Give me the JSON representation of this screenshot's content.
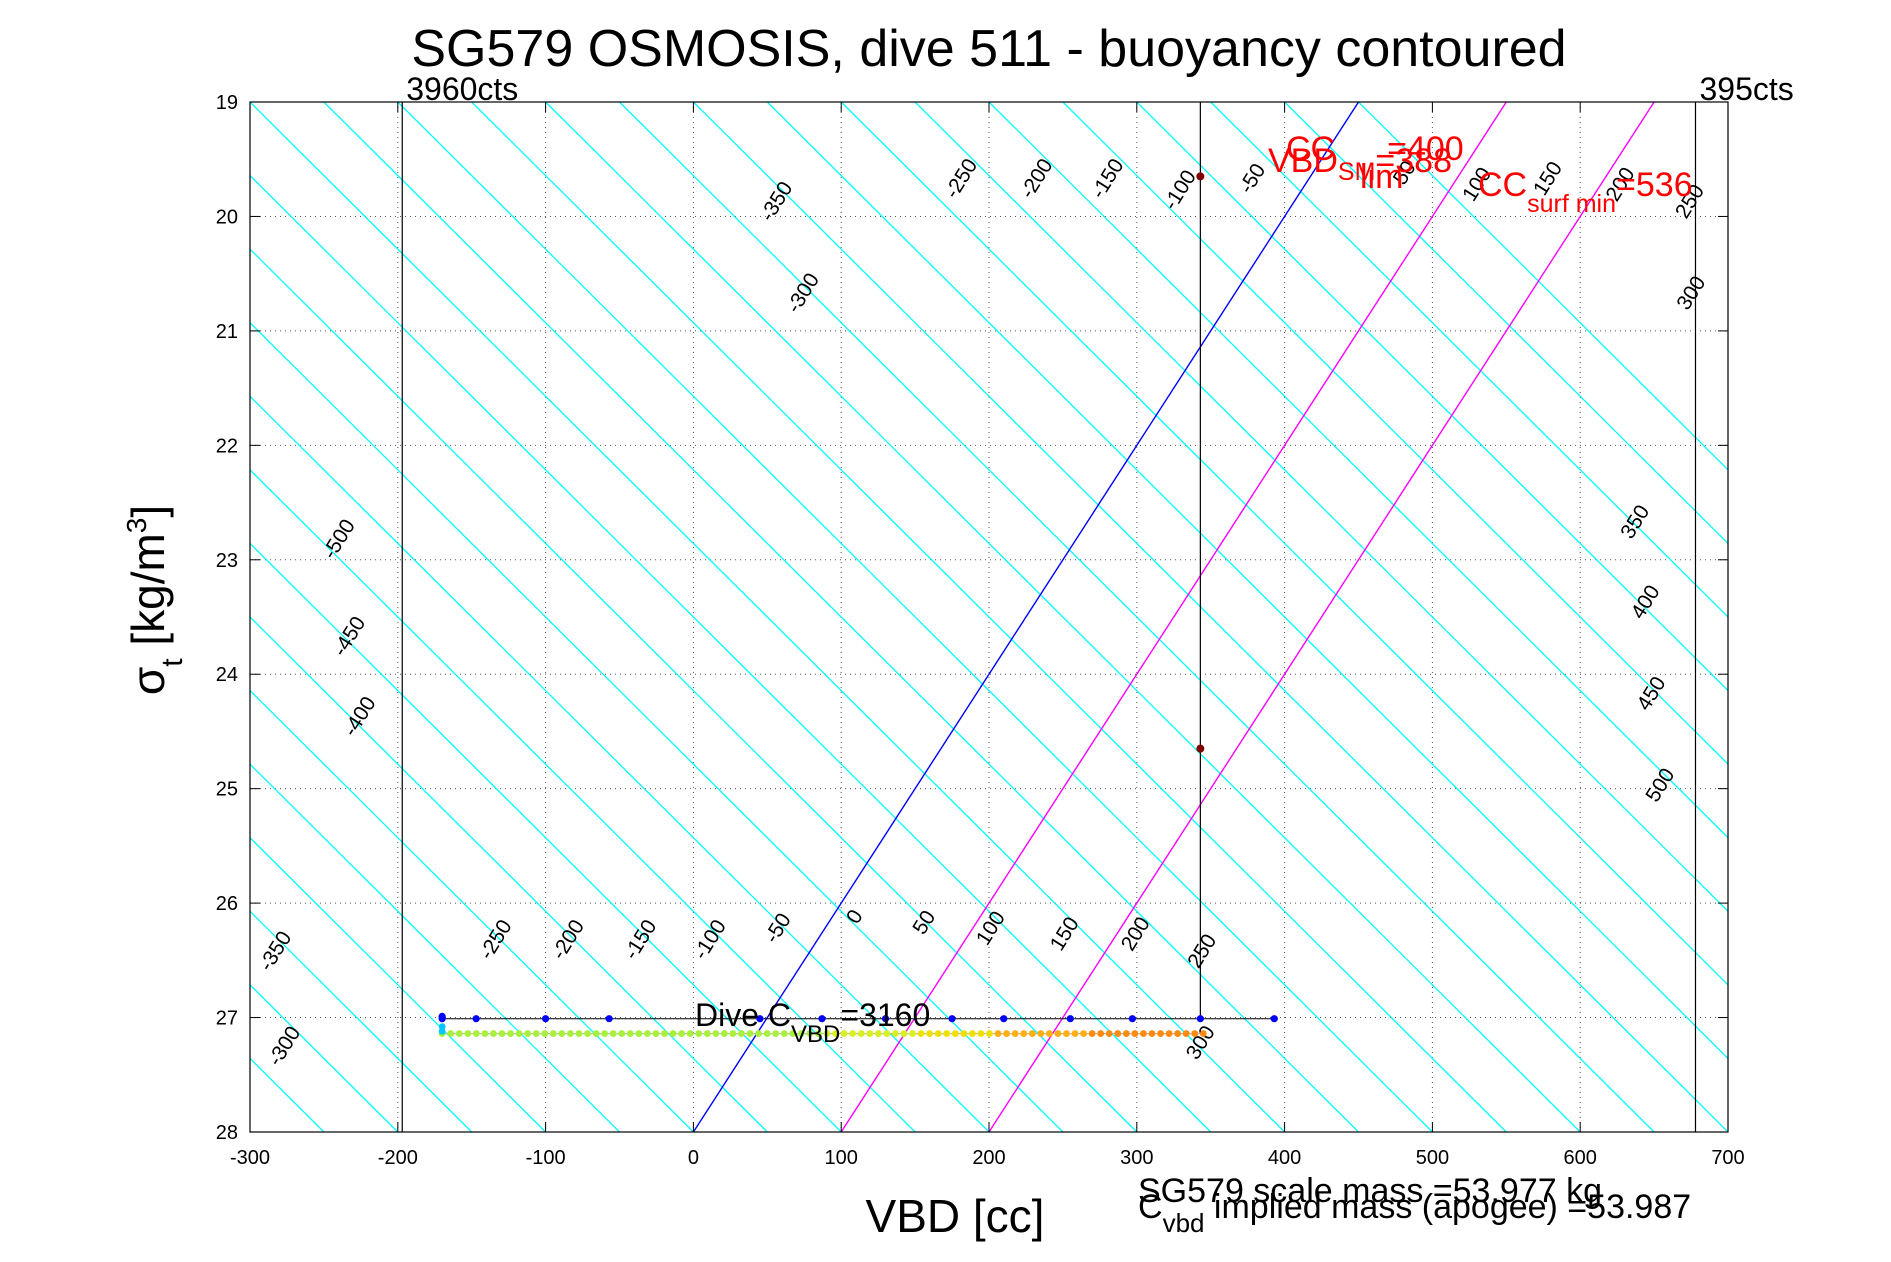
{
  "chart_data": {
    "type": "scatter",
    "title": "SG579 OSMOSIS, dive 511 - buoyancy contoured",
    "xlabel": "VBD [cc]",
    "ylabel_main": "σ",
    "ylabel_sub": "t",
    "ylabel_rest": " [kg/m",
    "ylabel_sup": "3",
    "ylabel_end": "]",
    "xlim": [
      -300,
      700
    ],
    "ylim": [
      19,
      28
    ],
    "y_reversed": true,
    "grid": true,
    "xticks": [
      -300,
      -200,
      -100,
      0,
      100,
      200,
      300,
      400,
      500,
      600,
      700
    ],
    "yticks": [
      19,
      20,
      21,
      22,
      23,
      24,
      25,
      26,
      27,
      28
    ],
    "count_lines": [
      {
        "x": -197,
        "label": "3960cts"
      },
      {
        "x": 678,
        "label": "395cts"
      }
    ],
    "cc_line_x": 343,
    "contours": {
      "color": "#00ffff",
      "x_at_28": [
        -300,
        -250,
        -200,
        -150,
        -100,
        -50,
        0,
        50,
        100,
        150,
        200,
        250,
        300,
        350,
        400,
        450,
        500,
        550,
        600,
        650,
        700,
        750,
        800,
        850,
        900,
        950,
        1000,
        1050,
        1100,
        1150
      ],
      "x_at_19": [
        -1000,
        -950,
        -900,
        -850,
        -800,
        -750,
        -700,
        -650,
        -600,
        -550,
        -500,
        -450,
        -400,
        -350,
        -300,
        -250,
        -200,
        -150,
        -100,
        -50,
        0,
        50,
        100,
        150,
        200,
        250,
        300,
        350,
        400,
        450
      ]
    },
    "contour_labels_top": [
      {
        "text": "-350",
        "x": 60,
        "y": 19.9
      },
      {
        "text": "-300",
        "x": 78,
        "y": 20.7
      },
      {
        "text": "-250",
        "x": 185,
        "y": 19.7
      },
      {
        "text": "-200",
        "x": 236,
        "y": 19.7
      },
      {
        "text": "-150",
        "x": 284,
        "y": 19.7
      },
      {
        "text": "-100",
        "x": 333,
        "y": 19.8
      },
      {
        "text": "-50",
        "x": 382,
        "y": 19.7
      },
      {
        "text": "50",
        "x": 485,
        "y": 19.65
      },
      {
        "text": "100",
        "x": 534,
        "y": 19.75
      },
      {
        "text": "150",
        "x": 582,
        "y": 19.7
      },
      {
        "text": "200",
        "x": 631,
        "y": 19.75
      },
      {
        "text": "250",
        "x": 678,
        "y": 19.9
      },
      {
        "text": "300",
        "x": 679,
        "y": 20.7
      },
      {
        "text": "350",
        "x": 641,
        "y": 22.7
      },
      {
        "text": "400",
        "x": 648,
        "y": 23.4
      },
      {
        "text": "450",
        "x": 652,
        "y": 24.2
      },
      {
        "text": "500",
        "x": 658,
        "y": 25.0
      }
    ],
    "contour_labels_left": [
      {
        "text": "-500",
        "x": -236,
        "y": 22.85
      },
      {
        "text": "-450",
        "x": -229,
        "y": 23.7
      },
      {
        "text": "-400",
        "x": -222,
        "y": 24.4
      },
      {
        "text": "-350",
        "x": -279,
        "y": 26.45
      },
      {
        "text": "-300",
        "x": -273,
        "y": 27.28
      }
    ],
    "contour_labels_bottom": [
      {
        "text": "-250",
        "x": -130,
        "y": 26.35
      },
      {
        "text": "-200",
        "x": -81,
        "y": 26.35
      },
      {
        "text": "-150",
        "x": -32,
        "y": 26.35
      },
      {
        "text": "-100",
        "x": 15,
        "y": 26.35
      },
      {
        "text": "-50",
        "x": 61,
        "y": 26.25
      },
      {
        "text": "0",
        "x": 113,
        "y": 26.15
      },
      {
        "text": "50",
        "x": 160,
        "y": 26.2
      },
      {
        "text": "100",
        "x": 205,
        "y": 26.25
      },
      {
        "text": "150",
        "x": 255,
        "y": 26.3
      },
      {
        "text": "200",
        "x": 303,
        "y": 26.3
      },
      {
        "text": "250",
        "x": 348,
        "y": 26.45
      },
      {
        "text": "300",
        "x": 347,
        "y": 27.25
      }
    ],
    "reference_lines": [
      {
        "name": "blue",
        "color": "#0000ff",
        "x_at_28": 0,
        "x_at_19": 450
      },
      {
        "name": "magenta1",
        "color": "#ff00ff",
        "x_at_28": 100,
        "x_at_19": 550
      },
      {
        "name": "magenta2",
        "color": "#ff00ff",
        "x_at_28": 200,
        "x_at_19": 650
      }
    ],
    "upper_points": [
      {
        "x": 343,
        "y": 19.65
      },
      {
        "x": 343,
        "y": 24.65
      }
    ],
    "blue_points": {
      "y": 27.01,
      "x": [
        -170,
        -147,
        -100,
        -57,
        45,
        87,
        130,
        175,
        210,
        255,
        297,
        343,
        393
      ]
    },
    "cast_points": {
      "y": 27.14,
      "x_start": -170,
      "x_end": 345,
      "count": 90
    },
    "annotations": {
      "dive_c_main": "Dive C",
      "dive_c_sub": "VBD",
      "dive_c_value": "=3160",
      "cc_main": "CC",
      "cc_value": "=400",
      "vbd_main": "VBD",
      "vbd_sub": "SM",
      "vbd_value": "=388",
      "lim_sub": "lim",
      "cc_surf_main": "CC",
      "cc_surf_sub": "surf min",
      "cc_surf_value": "=536"
    },
    "footer": {
      "scale_mass": "SG579 scale mass =53.977 kg",
      "c_main": "C",
      "c_sub": "vbd",
      "implied_mass": " implied mass (apogee) =53.987"
    }
  }
}
